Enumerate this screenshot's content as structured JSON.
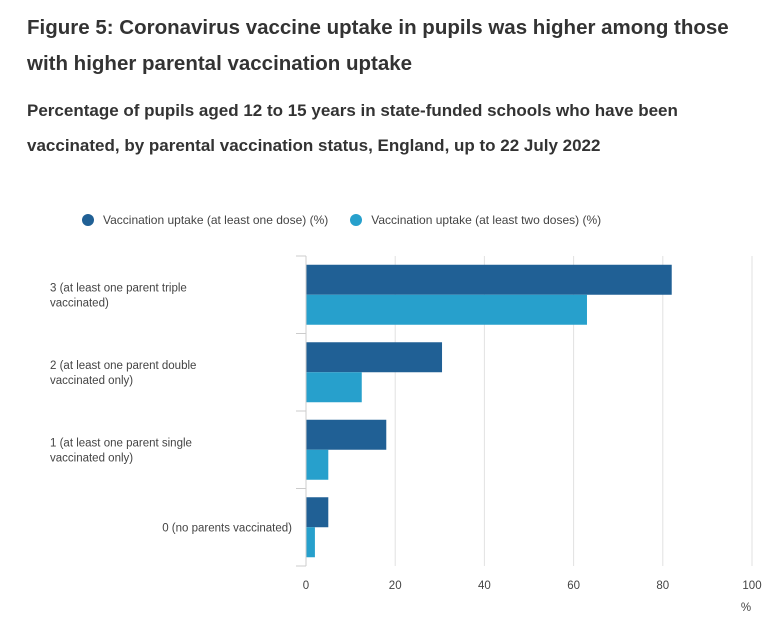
{
  "figure": {
    "title": "Figure 5: Coronavirus vaccine uptake in pupils was higher among those with higher parental vaccination uptake"
  },
  "chart_data": {
    "type": "bar",
    "orientation": "horizontal",
    "title": "Percentage of pupils aged 12 to 15 years in state-funded schools who have been vaccinated, by parental vaccination status, England, up to 22 July 2022",
    "categories": [
      "3 (at least one parent triple vaccinated)",
      "2 (at least one parent double vaccinated only)",
      "1 (at least one parent single vaccinated only)",
      "0 (no parents vaccinated)"
    ],
    "series": [
      {
        "name": "Vaccination uptake (at least one dose) (%)",
        "color": "#206095",
        "values": [
          82,
          30.5,
          18,
          5
        ]
      },
      {
        "name": "Vaccination uptake (at least two doses) (%)",
        "color": "#27a0cc",
        "values": [
          63,
          12.5,
          5,
          2
        ]
      }
    ],
    "xlim": [
      0,
      100
    ],
    "xticks": [
      0,
      20,
      40,
      60,
      80,
      100
    ],
    "xlabel": "%",
    "ylabel": "",
    "legend_position": "top",
    "grid": true
  }
}
